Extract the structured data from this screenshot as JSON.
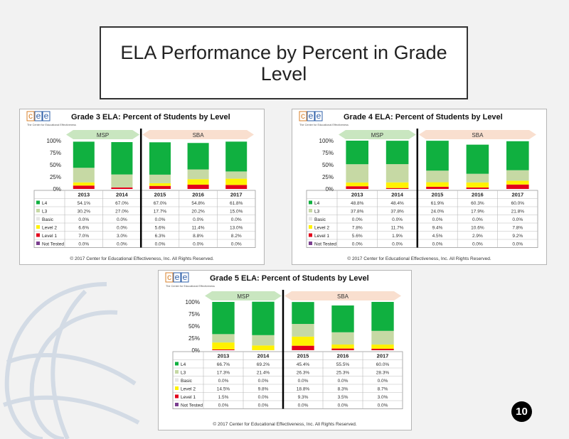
{
  "page": {
    "title": "ELA Performance by Percent in Grade Level",
    "page_number": "10"
  },
  "colors": {
    "L4": "#10b040",
    "L3": "#c6d9a4",
    "Basic": "#e6e6e6",
    "Level 2": "#fff200",
    "Level 1": "#e3001b",
    "Not Tested": "#7b3f8f",
    "logo_c": "#d9822b",
    "logo_e": "#2e5fa8"
  },
  "chart_data": [
    {
      "type": "bar",
      "stacked": true,
      "title": "Grade 3 ELA: Percent of Students by Level",
      "logo_text": "cee",
      "logo_caption": "The Center for Educational Effectiveness",
      "x": [
        "2013",
        "2014",
        "2015",
        "2016",
        "2017"
      ],
      "ylim": [
        0,
        100
      ],
      "yticks": [
        "0%",
        "25%",
        "50%",
        "75%",
        "100%"
      ],
      "test_labels": [
        "MSP",
        "SBA"
      ],
      "test_spans": [
        [
          0,
          1
        ],
        [
          2,
          4
        ]
      ],
      "series": [
        {
          "name": "L4",
          "values": [
            54.1,
            67.0,
            67.0,
            54.8,
            61.8
          ]
        },
        {
          "name": "L3",
          "values": [
            30.2,
            27.0,
            17.7,
            20.2,
            15.0
          ]
        },
        {
          "name": "Basic",
          "values": [
            0.0,
            0.0,
            0.0,
            0.0,
            0.0
          ]
        },
        {
          "name": "Level 2",
          "values": [
            6.6,
            0.0,
            5.6,
            11.4,
            13.0
          ]
        },
        {
          "name": "Level 1",
          "values": [
            7.0,
            3.0,
            6.3,
            8.8,
            8.2
          ]
        },
        {
          "name": "Not Tested",
          "values": [
            0.0,
            0.0,
            0.0,
            0.0,
            0.0
          ]
        }
      ],
      "table_rows": [
        [
          "54.1%",
          "67.0%",
          "67.0%",
          "54.8%",
          "61.8%"
        ],
        [
          "30.2%",
          "27.0%",
          "17.7%",
          "20.2%",
          "15.0%"
        ],
        [
          "0.0%",
          "0.0%",
          "0.0%",
          "0.0%",
          "0.0%"
        ],
        [
          "6.6%",
          "0.0%",
          "5.6%",
          "11.4%",
          "13.0%"
        ],
        [
          "7.0%",
          "3.0%",
          "6.3%",
          "8.8%",
          "8.2%"
        ],
        [
          "0.0%",
          "0.0%",
          "0.0%",
          "0.0%",
          "0.0%"
        ]
      ],
      "copyright": "© 2017 Center for Educational Effectiveness, Inc. All Rights Reserved."
    },
    {
      "type": "bar",
      "stacked": true,
      "title": "Grade 4 ELA: Percent of Students by Level",
      "logo_text": "cee",
      "logo_caption": "The Center for Educational Effectiveness",
      "x": [
        "2013",
        "2014",
        "2015",
        "2016",
        "2017"
      ],
      "ylim": [
        0,
        100
      ],
      "yticks": [
        "0%",
        "25%",
        "50%",
        "75%",
        "100%"
      ],
      "test_labels": [
        "MSP",
        "SBA"
      ],
      "test_spans": [
        [
          0,
          1
        ],
        [
          2,
          4
        ]
      ],
      "series": [
        {
          "name": "L4",
          "values": [
            48.8,
            48.4,
            61.9,
            60.3,
            60.0
          ]
        },
        {
          "name": "L3",
          "values": [
            37.8,
            37.8,
            24.0,
            17.9,
            21.8
          ]
        },
        {
          "name": "Basic",
          "values": [
            0.0,
            0.0,
            0.0,
            0.0,
            0.0
          ]
        },
        {
          "name": "Level 2",
          "values": [
            7.8,
            11.7,
            9.4,
            10.6,
            7.8
          ]
        },
        {
          "name": "Level 1",
          "values": [
            5.6,
            1.9,
            4.5,
            2.9,
            9.2
          ]
        },
        {
          "name": "Not Tested",
          "values": [
            0.0,
            0.0,
            0.0,
            0.0,
            0.0
          ]
        }
      ],
      "table_rows": [
        [
          "48.8%",
          "48.4%",
          "61.9%",
          "60.3%",
          "60.0%"
        ],
        [
          "37.8%",
          "37.8%",
          "24.0%",
          "17.9%",
          "21.8%"
        ],
        [
          "0.0%",
          "0.0%",
          "0.0%",
          "0.0%",
          "0.0%"
        ],
        [
          "7.8%",
          "11.7%",
          "9.4%",
          "10.6%",
          "7.8%"
        ],
        [
          "5.6%",
          "1.9%",
          "4.5%",
          "2.9%",
          "9.2%"
        ],
        [
          "0.0%",
          "0.0%",
          "0.0%",
          "0.0%",
          "0.0%"
        ]
      ],
      "copyright": "© 2017 Center for Educational Effectiveness, Inc. All Rights Reserved."
    },
    {
      "type": "bar",
      "stacked": true,
      "title": "Grade 5 ELA: Percent of Students by Level",
      "logo_text": "cee",
      "logo_caption": "The Center for Educational Effectiveness",
      "x": [
        "2013",
        "2014",
        "2015",
        "2016",
        "2017"
      ],
      "ylim": [
        0,
        100
      ],
      "yticks": [
        "0%",
        "25%",
        "50%",
        "75%",
        "100%"
      ],
      "test_labels": [
        "MSP",
        "SBA"
      ],
      "test_spans": [
        [
          0,
          1
        ],
        [
          2,
          4
        ]
      ],
      "series": [
        {
          "name": "L4",
          "values": [
            66.7,
            69.2,
            45.4,
            55.5,
            60.0
          ]
        },
        {
          "name": "L3",
          "values": [
            17.3,
            21.4,
            26.3,
            25.3,
            28.3
          ]
        },
        {
          "name": "Basic",
          "values": [
            0.0,
            0.0,
            0.0,
            0.0,
            0.0
          ]
        },
        {
          "name": "Level 2",
          "values": [
            14.5,
            9.8,
            18.8,
            8.3,
            8.7
          ]
        },
        {
          "name": "Level 1",
          "values": [
            1.5,
            0.0,
            9.3,
            3.5,
            3.0
          ]
        },
        {
          "name": "Not Tested",
          "values": [
            0.0,
            0.0,
            0.0,
            0.0,
            0.0
          ]
        }
      ],
      "table_rows": [
        [
          "66.7%",
          "69.2%",
          "45.4%",
          "55.5%",
          "60.0%"
        ],
        [
          "17.3%",
          "21.4%",
          "26.3%",
          "25.3%",
          "28.3%"
        ],
        [
          "0.0%",
          "0.0%",
          "0.0%",
          "0.0%",
          "0.0%"
        ],
        [
          "14.5%",
          "9.8%",
          "18.8%",
          "8.3%",
          "8.7%"
        ],
        [
          "1.5%",
          "0.0%",
          "9.3%",
          "3.5%",
          "3.0%"
        ],
        [
          "0.0%",
          "0.0%",
          "0.0%",
          "0.0%",
          "0.0%"
        ]
      ],
      "copyright": "© 2017 Center for Educational Effectiveness, Inc. All Rights Reserved."
    }
  ]
}
